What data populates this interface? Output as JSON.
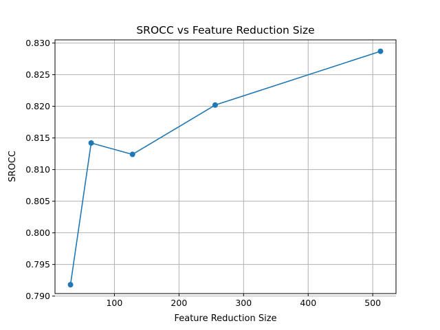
{
  "chart_data": {
    "type": "line",
    "title": "SROCC vs Feature Reduction Size",
    "xlabel": "Feature Reduction Size",
    "ylabel": "SROCC",
    "xlim": [
      8,
      536
    ],
    "ylim": [
      0.7904,
      0.8305
    ],
    "x_ticks": [
      100,
      200,
      300,
      400,
      500
    ],
    "y_ticks": [
      0.79,
      0.795,
      0.8,
      0.805,
      0.81,
      0.815,
      0.82,
      0.825,
      0.83
    ],
    "grid": true,
    "series": [
      {
        "color": "#1f77b4",
        "marker": "circle",
        "x": [
          32,
          64,
          128,
          256,
          512
        ],
        "y": [
          0.7918,
          0.8142,
          0.8124,
          0.8202,
          0.8287
        ]
      }
    ]
  }
}
